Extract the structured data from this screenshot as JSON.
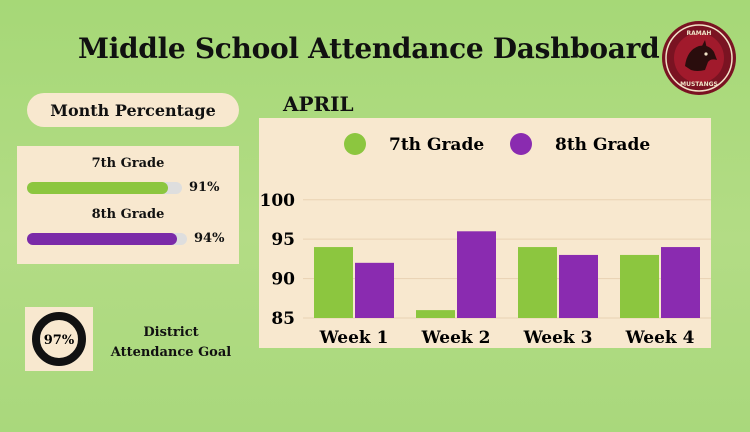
{
  "header": {
    "title": "Middle School Attendance Dashboard",
    "logo_top_text": "RAMAH",
    "logo_bottom_text": "MUSTANGS"
  },
  "month_percentage": {
    "label": "Month Percentage",
    "grades": [
      {
        "name": "7th Grade",
        "value": 91,
        "value_label": "91%",
        "color": "#8cc63f"
      },
      {
        "name": "8th Grade",
        "value": 94,
        "value_label": "94%",
        "color": "#7b2aa8"
      }
    ]
  },
  "district_goal": {
    "value": 97,
    "value_label": "97%",
    "label_line1": "District",
    "label_line2": "Attendance Goal"
  },
  "chart_data": {
    "type": "bar",
    "title": "APRIL",
    "categories": [
      "Week 1",
      "Week 2",
      "Week 3",
      "Week 4"
    ],
    "series": [
      {
        "name": "7th Grade",
        "color": "#8cc63f",
        "values": [
          94,
          86,
          94,
          93
        ]
      },
      {
        "name": "8th Grade",
        "color": "#8a2bb0",
        "values": [
          92,
          96,
          93,
          94
        ]
      }
    ],
    "ylim": [
      85,
      102
    ],
    "yticks": [
      85,
      90,
      95,
      100
    ],
    "grid": true,
    "legend": "top"
  }
}
